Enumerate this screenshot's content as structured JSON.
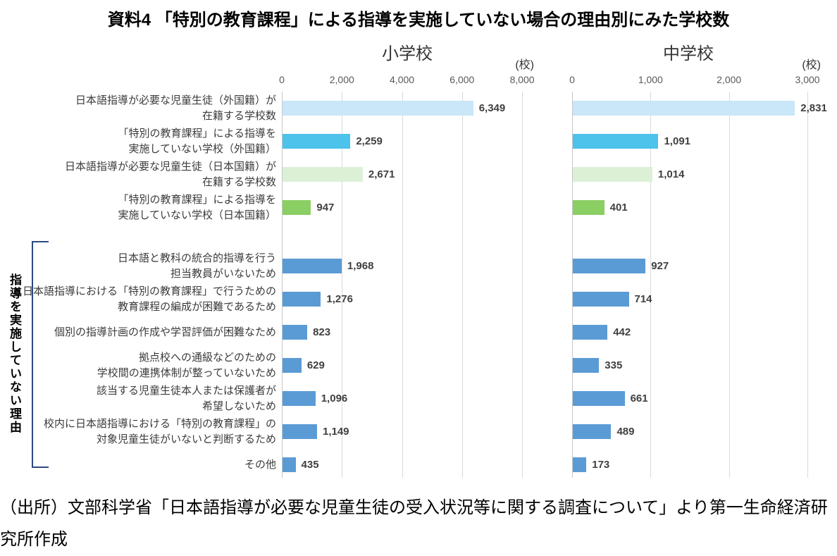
{
  "page": {
    "title": "資料4 「特別の教育課程」による指導を実施していない場合の理由別にみた学校数",
    "side_label": "指導を実施していない理由",
    "source": "（出所）文部科学省「日本語指導が必要な児童生徒の受入状況等に関する調査について」より第一生命経済研究所作成"
  },
  "colors": {
    "enrolled_foreign_bar": "#C9E7F8",
    "not_implementing_foreign_bar": "#4DC2EA",
    "enrolled_japanese_bar": "#DCF0D6",
    "not_implementing_japanese_bar": "#8BCE63",
    "reason_bar": "#5B9BD5",
    "gridline": "#D9D9D9",
    "axis_line": "#C6C6C6",
    "value_label": "#404040",
    "axis_label": "#595959",
    "bracket": "#2B4A7D"
  },
  "chart_data": {
    "type": "bar",
    "orientation": "horizontal",
    "grid": true,
    "legend": "none",
    "group_split_after_index": 3,
    "categories_lines": [
      [
        "日本語指導が必要な児童生徒（外国籍）が",
        "在籍する学校数"
      ],
      [
        "「特別の教育課程」による指導を",
        "実施していない学校（外国籍）"
      ],
      [
        "日本語指導が必要な児童生徒（日本国籍）が",
        "在籍する学校数"
      ],
      [
        "「特別の教育課程」による指導を",
        "実施していない学校（日本国籍）"
      ],
      [
        "日本語と教科の統合的指導を行う",
        "担当教員がいないため"
      ],
      [
        "日本語指導における「特別の教育課程」で行うための",
        "教育課程の編成が困難であるため"
      ],
      [
        "個別の指導計画の作成や学習評価が困難なため"
      ],
      [
        "拠点校への通級などのための",
        "学校間の連携体制が整っていないため"
      ],
      [
        "該当する児童生徒本人または保護者が",
        "希望しないため"
      ],
      [
        "校内に日本語指導における「特別の教育課程」の",
        "対象児童生徒がいないと判断するため"
      ],
      [
        "その他"
      ]
    ],
    "bar_colors_by_row": [
      "#C9E7F8",
      "#4DC2EA",
      "#DCF0D6",
      "#8BCE63",
      "#5B9BD5",
      "#5B9BD5",
      "#5B9BD5",
      "#5B9BD5",
      "#5B9BD5",
      "#5B9BD5",
      "#5B9BD5"
    ],
    "charts": [
      {
        "name": "小学校",
        "unit": "(校)",
        "values": [
          6349,
          2259,
          2671,
          947,
          1968,
          1276,
          823,
          629,
          1096,
          1149,
          435
        ],
        "ticks": [
          0,
          2000,
          4000,
          6000,
          8000
        ],
        "xmax": 9100
      },
      {
        "name": "中学校",
        "unit": "(校)",
        "values": [
          2831,
          1091,
          1014,
          401,
          927,
          714,
          442,
          335,
          661,
          489,
          173
        ],
        "ticks": [
          0,
          1000,
          2000,
          3000
        ],
        "xmax": 3170
      }
    ]
  }
}
